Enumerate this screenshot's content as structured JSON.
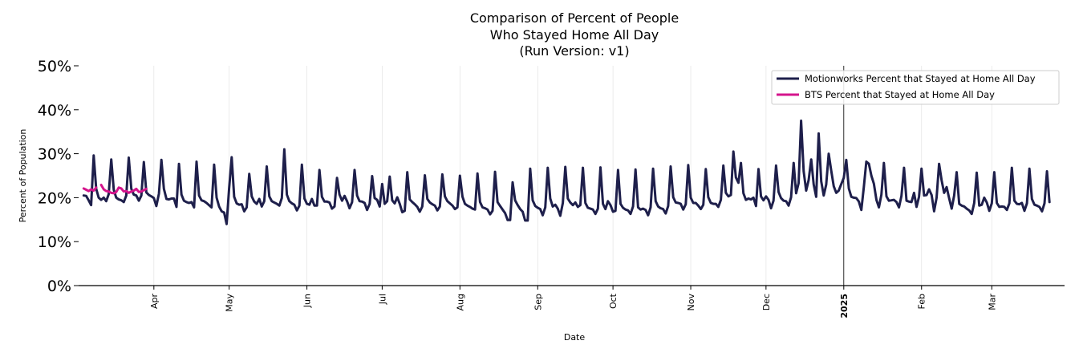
{
  "chart_data": {
    "type": "line",
    "title": [
      "Comparison of Percent of People",
      "Who Stayed Home All Day",
      "(Run Version: v1)"
    ],
    "xlabel": "Date",
    "ylabel": "Percent of Population",
    "ylim": [
      0,
      50
    ],
    "yticks": [
      "0%",
      "10%",
      "20%",
      "30%",
      "40%",
      "50%"
    ],
    "yvalues": [
      0,
      10,
      20,
      30,
      40,
      50
    ],
    "x_range_days": [
      0,
      393
    ],
    "x_ticks": [
      {
        "label": "Apr",
        "day": 30
      },
      {
        "label": "May",
        "day": 60
      },
      {
        "label": "Jun",
        "day": 91
      },
      {
        "label": "Jul",
        "day": 121
      },
      {
        "label": "Aug",
        "day": 152
      },
      {
        "label": "Sep",
        "day": 183
      },
      {
        "label": "Oct",
        "day": 213
      },
      {
        "label": "Nov",
        "day": 244
      },
      {
        "label": "Dec",
        "day": 274
      },
      {
        "label": "2025",
        "day": 305,
        "bold": true
      },
      {
        "label": "Feb",
        "day": 336
      },
      {
        "label": "Mar",
        "day": 364
      }
    ],
    "vline_day": 305,
    "legend_position": "top-right",
    "series": [
      {
        "name": "Motionworks Percent that Stayed at Home All Day",
        "color": "#1e1f4b",
        "start_day": 2,
        "values": [
          20.5,
          20.4,
          19.4,
          18.3,
          29.6,
          22.0,
          20.0,
          19.5,
          20.0,
          19.2,
          20.8,
          28.7,
          21.8,
          20.0,
          19.6,
          19.4,
          19.0,
          20.5,
          29.1,
          22.0,
          20.7,
          20.5,
          19.3,
          20.5,
          28.1,
          21.2,
          20.6,
          20.3,
          19.9,
          18.1,
          20.9,
          28.6,
          22.0,
          19.7,
          19.6,
          19.8,
          19.8,
          17.9,
          27.7,
          20.7,
          19.3,
          19.0,
          18.8,
          19.0,
          17.8,
          28.2,
          20.5,
          19.4,
          19.2,
          18.8,
          18.3,
          17.8,
          27.5,
          20.0,
          18.0,
          16.9,
          16.6,
          14.0,
          22.1,
          29.2,
          20.2,
          18.7,
          18.4,
          18.5,
          16.9,
          17.8,
          25.4,
          20.3,
          19.1,
          18.6,
          19.7,
          18.0,
          19.2,
          27.1,
          20.3,
          19.2,
          18.9,
          18.6,
          18.2,
          19.9,
          31.0,
          20.7,
          19.2,
          18.7,
          18.4,
          17.1,
          18.2,
          27.5,
          19.8,
          18.6,
          18.4,
          19.7,
          18.2,
          18.2,
          26.3,
          20.2,
          19.1,
          19.1,
          18.9,
          17.5,
          18.0,
          24.5,
          20.7,
          19.3,
          20.4,
          19.2,
          17.6,
          19.0,
          26.3,
          20.5,
          19.2,
          19.1,
          18.8,
          17.2,
          18.6,
          24.9,
          19.9,
          19.5,
          18.0,
          23.1,
          18.6,
          19.2,
          24.8,
          19.4,
          18.7,
          20.1,
          18.6,
          16.7,
          17.0,
          25.8,
          19.6,
          19.0,
          18.5,
          17.9,
          16.8,
          18.0,
          25.1,
          19.7,
          18.9,
          18.5,
          18.2,
          17.1,
          18.0,
          25.3,
          20.3,
          19.2,
          18.7,
          18.2,
          17.4,
          17.8,
          25.0,
          20.2,
          18.6,
          18.2,
          17.9,
          17.5,
          17.3,
          25.5,
          19.0,
          17.8,
          17.6,
          17.3,
          16.2,
          17.0,
          25.9,
          19.0,
          18.1,
          17.3,
          16.5,
          14.9,
          14.9,
          23.5,
          19.4,
          18.3,
          17.4,
          16.8,
          14.8,
          14.8,
          26.6,
          19.4,
          18.1,
          17.7,
          17.4,
          16.0,
          17.8,
          26.8,
          19.8,
          18.0,
          18.4,
          17.5,
          15.9,
          18.8,
          27.0,
          19.8,
          18.9,
          18.3,
          18.9,
          17.9,
          18.3,
          26.8,
          18.8,
          17.7,
          17.5,
          17.3,
          16.3,
          17.5,
          26.9,
          18.6,
          17.4,
          19.2,
          18.3,
          16.8,
          17.0,
          26.3,
          18.6,
          17.7,
          17.3,
          17.1,
          16.3,
          18.0,
          26.4,
          17.8,
          17.3,
          17.5,
          17.2,
          16.0,
          17.8,
          26.6,
          19.2,
          18.0,
          17.6,
          17.4,
          16.4,
          18.1,
          27.1,
          20.1,
          18.9,
          18.8,
          18.6,
          17.3,
          18.5,
          27.4,
          20.0,
          18.8,
          18.8,
          18.2,
          17.4,
          18.4,
          26.5,
          20.1,
          18.8,
          18.6,
          18.6,
          17.9,
          19.5,
          27.3,
          21.1,
          20.3,
          20.6,
          30.5,
          24.6,
          23.4,
          27.9,
          21.0,
          19.5,
          19.8,
          19.6,
          20.0,
          18.1,
          26.5,
          20.3,
          19.4,
          20.3,
          19.5,
          17.6,
          19.3,
          27.3,
          21.3,
          19.9,
          19.3,
          19.2,
          18.2,
          20.1,
          27.9,
          21.0,
          23.3,
          37.5,
          26.0,
          21.6,
          24.0,
          28.7,
          23.0,
          20.2,
          34.6,
          23.7,
          20.5,
          23.0,
          30.0,
          26.1,
          22.6,
          21.1,
          21.6,
          23.1,
          24.5,
          28.6,
          22.1,
          20.2,
          20.0,
          19.9,
          19.1,
          17.2,
          22.4,
          28.2,
          27.7,
          25.0,
          23.2,
          19.5,
          17.8,
          20.7,
          27.9,
          20.3,
          19.3,
          19.4,
          19.5,
          19.0,
          17.8,
          20.4,
          26.8,
          19.3,
          19.1,
          19.0,
          21.1,
          17.9,
          20.2,
          26.6,
          20.5,
          20.6,
          21.9,
          20.6,
          16.9,
          20.0,
          27.7,
          23.9,
          21.1,
          22.4,
          19.9,
          17.5,
          20.5,
          25.8,
          18.6,
          18.2,
          18.0,
          17.5,
          17.1,
          16.3,
          18.8,
          25.7,
          18.2,
          18.4,
          20.0,
          18.9,
          17.0,
          18.7,
          25.8,
          18.8,
          17.9,
          18.0,
          17.9,
          17.2,
          18.7,
          26.8,
          19.3,
          18.6,
          18.5,
          18.8,
          17.0,
          18.7,
          26.6,
          19.7,
          18.4,
          18.2,
          17.9,
          16.9,
          18.7,
          26.0,
          19.0
        ]
      },
      {
        "name": "BTS Percent that Stayed at Home All Day",
        "color": "#d4148c",
        "start_day": 2,
        "values": [
          22.1,
          21.8,
          21.5,
          21.9,
          21.6,
          22.3,
          null,
          22.9,
          21.9,
          21.5,
          21.4,
          21.1,
          21.0,
          21.3,
          22.3,
          22.1,
          21.4,
          21.5,
          21.1,
          21.4,
          21.6,
          22.0,
          21.3,
          21.4,
          21.7,
          22.0
        ]
      }
    ]
  }
}
